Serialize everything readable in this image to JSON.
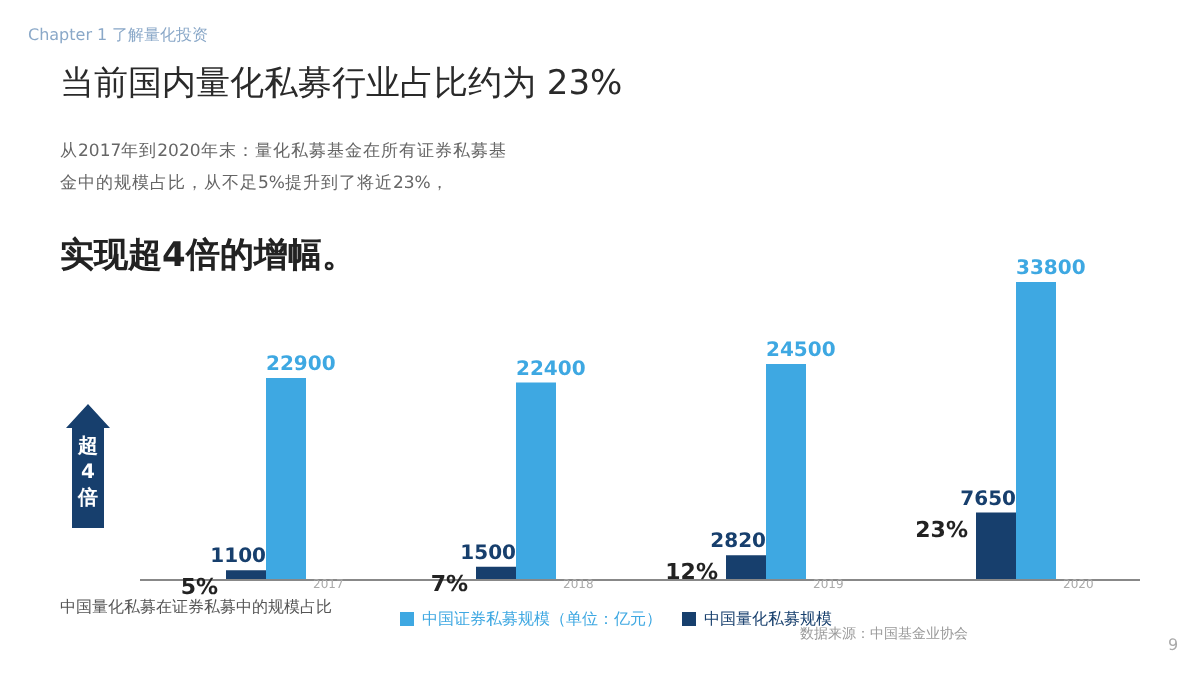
{
  "chart_data": {
    "type": "bar",
    "title": "当前国内量化私募行业占比约为 23%",
    "subtitle": "从2017年到2020年末：量化私募基金在所有证券私募基金中的规模占比，从不足5%提升到了将近23%，",
    "categories": [
      "2017",
      "2018",
      "2019",
      "2020"
    ],
    "series": [
      {
        "name": "中国量化私募规模",
        "color": "#173f6d",
        "values": [
          1100,
          1500,
          2820,
          7650
        ]
      },
      {
        "name": "中国证券私募规模（单位：亿元）",
        "color": "#3ea8e2",
        "values": [
          22900,
          22400,
          24500,
          33800
        ]
      }
    ],
    "data_labels": true,
    "legend": "bottom",
    "tick_labels": "x",
    "annotations": [
      "Chapter 1  了解量化投资",
      "实现超4倍的增幅。",
      "超4倍",
      "中国量化私募在证券私募中的规模占比",
      "数据来源：中国基金业协会",
      "9",
      "5%",
      "7%",
      "12%",
      "23%"
    ]
  }
}
